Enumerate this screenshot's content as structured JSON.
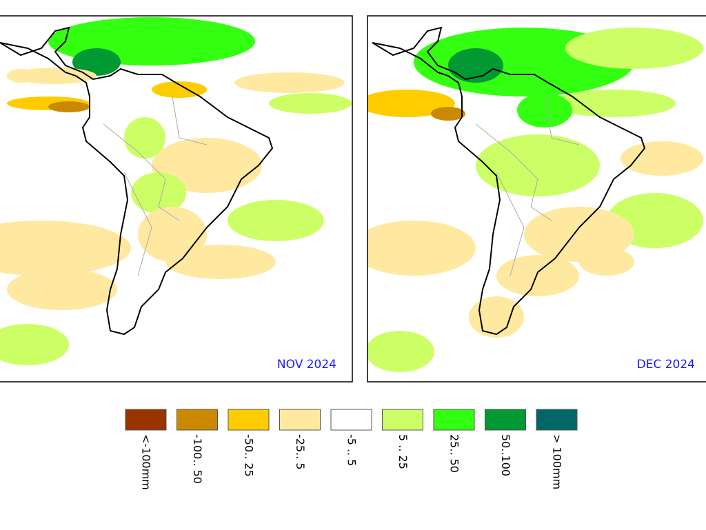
{
  "panels": [
    {
      "label": "NOV 2024"
    },
    {
      "label": "DEC 2024"
    }
  ],
  "legend": [
    {
      "color": "#993300",
      "label": "<-100mm"
    },
    {
      "color": "#cc8800",
      "label": "-100.. 50"
    },
    {
      "color": "#ffcc00",
      "label": "-50.. 25"
    },
    {
      "color": "#ffe9a0",
      "label": "-25.. 5"
    },
    {
      "color": "#ffffff",
      "label": "-5 .. 5"
    },
    {
      "color": "#ccff66",
      "label": "5 .. 25"
    },
    {
      "color": "#33ff11",
      "label": "25.. 50"
    },
    {
      "color": "#009933",
      "label": "50..100"
    },
    {
      "color": "#006666",
      "label": "> 100mm"
    }
  ]
}
